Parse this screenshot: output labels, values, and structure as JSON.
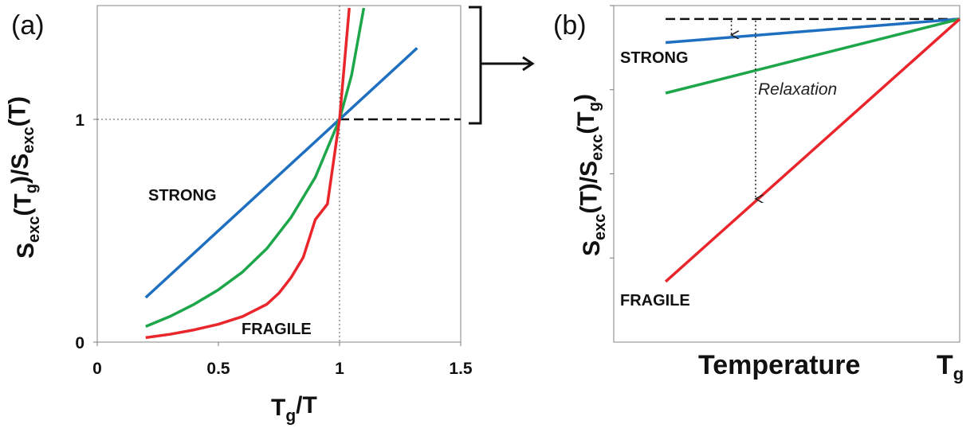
{
  "chart_data": [
    {
      "panel": "(a)",
      "type": "line",
      "xlabel": {
        "main": "T",
        "sub": "g",
        "rest": "/T"
      },
      "ylabel": {
        "parts": [
          [
            "S",
            ""
          ],
          [
            "exc",
            "sub"
          ],
          [
            "(T",
            ""
          ],
          [
            "g",
            "sub"
          ],
          [
            ")/S",
            ""
          ],
          [
            "exc",
            "sub"
          ],
          [
            "(T)",
            ""
          ]
        ]
      },
      "xlim": [
        0,
        1.5
      ],
      "ylim": [
        0,
        1.5
      ],
      "x_ticks": [
        0,
        0.5,
        1,
        1.5
      ],
      "x_tick_labels": [
        "0",
        "0.5",
        "1",
        "1.5"
      ],
      "y_ticks": [
        0,
        1
      ],
      "y_tick_labels": [
        "0",
        "1"
      ],
      "series": [
        {
          "name": "STRONG",
          "color": "#1f6fc1",
          "x": [
            0.2,
            1.32
          ],
          "y": [
            0.2,
            1.32
          ]
        },
        {
          "color": "#1ea64a",
          "x": [
            0.2,
            0.3,
            0.4,
            0.5,
            0.6,
            0.7,
            0.8,
            0.9,
            1.0,
            1.05,
            1.1
          ],
          "y": [
            0.07,
            0.115,
            0.17,
            0.235,
            0.315,
            0.42,
            0.56,
            0.74,
            1.0,
            1.2,
            1.5
          ]
        },
        {
          "name": "FRAGILE",
          "color": "#e8262b",
          "x": [
            0.2,
            0.3,
            0.4,
            0.5,
            0.6,
            0.7,
            0.75,
            0.8,
            0.85,
            0.9,
            0.95,
            1.0,
            1.02,
            1.04
          ],
          "y": [
            0.02,
            0.035,
            0.055,
            0.08,
            0.115,
            0.17,
            0.22,
            0.29,
            0.38,
            0.55,
            0.62,
            1.0,
            1.25,
            1.5
          ]
        }
      ],
      "reference_lines": {
        "x": 1,
        "y": 1
      },
      "curve_labels": {
        "strong": "STRONG",
        "fragile": "FRAGILE"
      },
      "zoom_bracket": "region near y = 1 magnified in panel (b)"
    },
    {
      "panel": "(b)",
      "type": "line",
      "xlabel": "Temperature",
      "x_end_label": {
        "main": "T",
        "sub": "g"
      },
      "ylabel": {
        "parts": [
          [
            "S",
            ""
          ],
          [
            "exc",
            "sub"
          ],
          [
            "(T)/S",
            ""
          ],
          [
            "exc",
            "sub"
          ],
          [
            "(T",
            ""
          ],
          [
            "g",
            "sub"
          ],
          [
            ")",
            ""
          ]
        ]
      },
      "xlim": [
        0,
        1
      ],
      "ylim": [
        0,
        1
      ],
      "y_ticks": [
        0.25,
        0.5,
        0.75,
        1.0
      ],
      "series": [
        {
          "name": "STRONG",
          "color": "#1f6fc1",
          "x": [
            0.15,
            1.0
          ],
          "y": [
            0.89,
            0.96
          ]
        },
        {
          "color": "#1ea64a",
          "x": [
            0.15,
            1.0
          ],
          "y": [
            0.74,
            0.96
          ]
        },
        {
          "name": "FRAGILE",
          "color": "#e8262b",
          "x": [
            0.15,
            1.0
          ],
          "y": [
            0.18,
            0.96
          ]
        }
      ],
      "reference_line_y": 0.96,
      "curve_labels": {
        "strong": "STRONG",
        "fragile": "FRAGILE"
      },
      "annotation": "Relaxation"
    }
  ]
}
